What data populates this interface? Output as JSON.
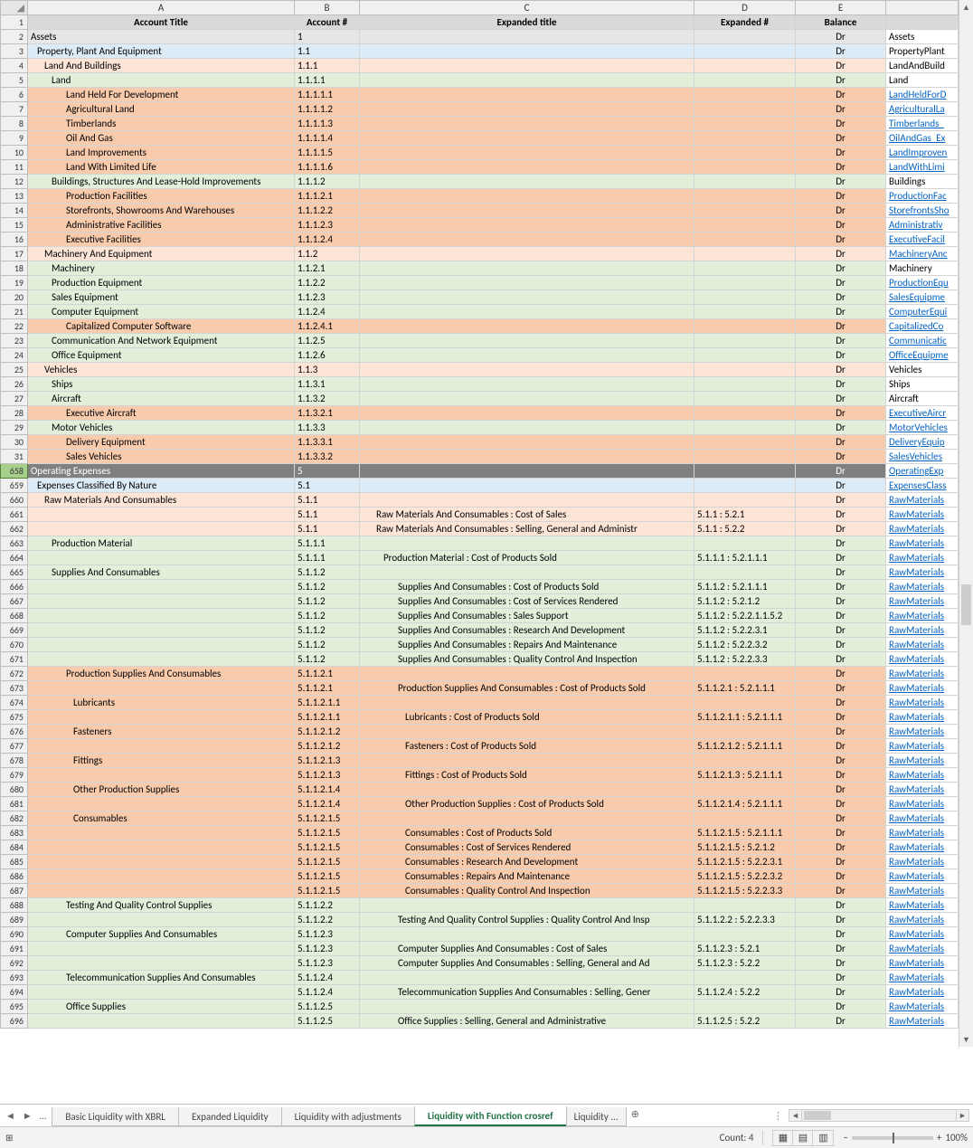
{
  "columns": {
    "labels": [
      "",
      "A",
      "B",
      "C",
      "D",
      "E",
      ""
    ],
    "widths": [
      30,
      295,
      72,
      370,
      112,
      100,
      80
    ],
    "headers": {
      "A": "Account Title",
      "B": "Account #",
      "C": "Expanded title",
      "D": "Expanded #",
      "E": "Balance"
    }
  },
  "row_colors": {
    "gray": "#d9d9d9",
    "lightgray": "#e7e6e6",
    "blue": "#ddebf7",
    "pink": "#fce4d6",
    "peach": "#f8cbad",
    "green": "#e2efda",
    "darkgray": "#808080",
    "white": "#ffffff",
    "sel": "#a8d08d"
  },
  "rows": [
    {
      "n": "1",
      "bg": "gray",
      "hdr": true
    },
    {
      "n": "2",
      "bg": "lightgray",
      "a": "Assets",
      "ai": 0,
      "b": "1",
      "e": "Dr",
      "f": "Assets"
    },
    {
      "n": "3",
      "bg": "blue",
      "a": "Property, Plant And Equipment",
      "ai": 1,
      "b": "1.1",
      "e": "Dr",
      "f": "PropertyPlant"
    },
    {
      "n": "4",
      "bg": "pink",
      "a": "Land And Buildings",
      "ai": 2,
      "b": "1.1.1",
      "e": "Dr",
      "f": "LandAndBuild"
    },
    {
      "n": "5",
      "bg": "green",
      "a": "Land",
      "ai": 3,
      "b": "1.1.1.1",
      "e": "Dr",
      "f": "Land"
    },
    {
      "n": "6",
      "bg": "peach",
      "a": "Land Held For Development",
      "ai": 4,
      "b": "1.1.1.1.1",
      "e": "Dr",
      "f": "LandHeldForD",
      "link": true
    },
    {
      "n": "7",
      "bg": "peach",
      "a": "Agricultural Land",
      "ai": 4,
      "b": "1.1.1.1.2",
      "e": "Dr",
      "f": "AgriculturalLa",
      "link": true
    },
    {
      "n": "8",
      "bg": "peach",
      "a": "Timberlands",
      "ai": 4,
      "b": "1.1.1.1.3",
      "e": "Dr",
      "f": "Timberlands_",
      "link": true
    },
    {
      "n": "9",
      "bg": "peach",
      "a": "Oil And Gas",
      "ai": 4,
      "b": "1.1.1.1.4",
      "e": "Dr",
      "f": "OilAndGas_Ex",
      "link": true
    },
    {
      "n": "10",
      "bg": "peach",
      "a": "Land Improvements",
      "ai": 4,
      "b": "1.1.1.1.5",
      "e": "Dr",
      "f": "LandImproven",
      "link": true
    },
    {
      "n": "11",
      "bg": "peach",
      "a": "Land With Limited Life",
      "ai": 4,
      "b": "1.1.1.1.6",
      "e": "Dr",
      "f": "LandWithLimi",
      "link": true
    },
    {
      "n": "12",
      "bg": "green",
      "a": "Buildings, Structures And Lease-Hold Improvements",
      "ai": 3,
      "b": "1.1.1.2",
      "e": "Dr",
      "f": "Buildings"
    },
    {
      "n": "13",
      "bg": "peach",
      "a": "Production Facilities",
      "ai": 4,
      "b": "1.1.1.2.1",
      "e": "Dr",
      "f": "ProductionFac",
      "link": true
    },
    {
      "n": "14",
      "bg": "peach",
      "a": "Storefronts, Showrooms And Warehouses",
      "ai": 4,
      "b": "1.1.1.2.2",
      "e": "Dr",
      "f": "StorefrontsSho",
      "link": true
    },
    {
      "n": "15",
      "bg": "peach",
      "a": "Administrative Facilities",
      "ai": 4,
      "b": "1.1.1.2.3",
      "e": "Dr",
      "f": "Administrativ",
      "link": true
    },
    {
      "n": "16",
      "bg": "peach",
      "a": "Executive Facilities",
      "ai": 4,
      "b": "1.1.1.2.4",
      "e": "Dr",
      "f": "ExecutiveFacil",
      "link": true
    },
    {
      "n": "17",
      "bg": "pink",
      "a": "Machinery And Equipment",
      "ai": 2,
      "b": "1.1.2",
      "e": "Dr",
      "f": "MachineryAnc",
      "link": true
    },
    {
      "n": "18",
      "bg": "green",
      "a": "Machinery",
      "ai": 3,
      "b": "1.1.2.1",
      "e": "Dr",
      "f": "Machinery"
    },
    {
      "n": "19",
      "bg": "green",
      "a": "Production Equipment",
      "ai": 3,
      "b": "1.1.2.2",
      "e": "Dr",
      "f": "ProductionEqu",
      "link": true
    },
    {
      "n": "20",
      "bg": "green",
      "a": "Sales Equipment",
      "ai": 3,
      "b": "1.1.2.3",
      "e": "Dr",
      "f": "SalesEquipme",
      "link": true
    },
    {
      "n": "21",
      "bg": "green",
      "a": "Computer Equipment",
      "ai": 3,
      "b": "1.1.2.4",
      "e": "Dr",
      "f": "ComputerEqui",
      "link": true
    },
    {
      "n": "22",
      "bg": "peach",
      "a": "Capitalized Computer Software",
      "ai": 4,
      "b": "1.1.2.4.1",
      "e": "Dr",
      "f": "CapitalizedCo",
      "link": true
    },
    {
      "n": "23",
      "bg": "green",
      "a": "Communication And Network Equipment",
      "ai": 3,
      "b": "1.1.2.5",
      "e": "Dr",
      "f": "Communicatic",
      "link": true
    },
    {
      "n": "24",
      "bg": "green",
      "a": "Office Equipment",
      "ai": 3,
      "b": "1.1.2.6",
      "e": "Dr",
      "f": "OfficeEquipme",
      "link": true
    },
    {
      "n": "25",
      "bg": "pink",
      "a": "Vehicles",
      "ai": 2,
      "b": "1.1.3",
      "e": "Dr",
      "f": "Vehicles"
    },
    {
      "n": "26",
      "bg": "green",
      "a": "Ships",
      "ai": 3,
      "b": "1.1.3.1",
      "e": "Dr",
      "f": "Ships"
    },
    {
      "n": "27",
      "bg": "green",
      "a": "Aircraft",
      "ai": 3,
      "b": "1.1.3.2",
      "e": "Dr",
      "f": "Aircraft"
    },
    {
      "n": "28",
      "bg": "peach",
      "a": "Executive Aircraft",
      "ai": 4,
      "b": "1.1.3.2.1",
      "e": "Dr",
      "f": "ExecutiveAircr",
      "link": true
    },
    {
      "n": "29",
      "bg": "green",
      "a": "Motor Vehicles",
      "ai": 3,
      "b": "1.1.3.3",
      "e": "Dr",
      "f": "MotorVehicles",
      "link": true
    },
    {
      "n": "30",
      "bg": "peach",
      "a": "Delivery Equipment",
      "ai": 4,
      "b": "1.1.3.3.1",
      "e": "Dr",
      "f": "DeliveryEquip",
      "link": true
    },
    {
      "n": "31",
      "bg": "peach",
      "a": "Sales Vehicles",
      "ai": 4,
      "b": "1.1.3.3.2",
      "e": "Dr",
      "f": "SalesVehicles",
      "link": true
    },
    {
      "n": "658",
      "bg": "darkgray",
      "sel": true,
      "a": "Operating Expenses",
      "ai": 0,
      "b": "5",
      "e": "Dr",
      "f": "OperatingExp",
      "txtcolor": "#fff",
      "link": true
    },
    {
      "n": "659",
      "bg": "blue",
      "a": "Expenses Classified By Nature",
      "ai": 1,
      "b": "5.1",
      "e": "Dr",
      "f": "ExpensesClass",
      "link": true
    },
    {
      "n": "660",
      "bg": "pink",
      "a": "Raw Materials And Consumables",
      "ai": 2,
      "b": "5.1.1",
      "e": "Dr",
      "f": "RawMaterials",
      "link": true
    },
    {
      "n": "661",
      "bg": "pink",
      "b": "5.1.1",
      "c": "Raw Materials And Consumables : Cost of Sales",
      "ci": 2,
      "d": "5.1.1 : 5.2.1",
      "e": "Dr",
      "f": "RawMaterials",
      "link": true
    },
    {
      "n": "662",
      "bg": "pink",
      "b": "5.1.1",
      "c": "Raw Materials And Consumables : Selling, General and Administr",
      "ci": 2,
      "d": "5.1.1 : 5.2.2",
      "e": "Dr",
      "f": "RawMaterials",
      "link": true
    },
    {
      "n": "663",
      "bg": "green",
      "a": "Production Material",
      "ai": 3,
      "b": "5.1.1.1",
      "e": "Dr",
      "f": "RawMaterials",
      "link": true
    },
    {
      "n": "664",
      "bg": "green",
      "b": "5.1.1.1",
      "c": "Production Material : Cost of Products Sold",
      "ci": 3,
      "d": "5.1.1.1 : 5.2.1.1.1",
      "e": "Dr",
      "f": "RawMaterials",
      "link": true
    },
    {
      "n": "665",
      "bg": "green",
      "a": "Supplies And Consumables",
      "ai": 3,
      "b": "5.1.1.2",
      "e": "Dr",
      "f": "RawMaterials",
      "link": true
    },
    {
      "n": "666",
      "bg": "green",
      "b": "5.1.1.2",
      "c": "Supplies And Consumables : Cost of Products Sold",
      "ci": 4,
      "d": "5.1.1.2 : 5.2.1.1.1",
      "e": "Dr",
      "f": "RawMaterials",
      "link": true
    },
    {
      "n": "667",
      "bg": "green",
      "b": "5.1.1.2",
      "c": "Supplies And Consumables : Cost of Services Rendered",
      "ci": 4,
      "d": "5.1.1.2 : 5.2.1.2",
      "e": "Dr",
      "f": "RawMaterials",
      "link": true
    },
    {
      "n": "668",
      "bg": "green",
      "b": "5.1.1.2",
      "c": "Supplies And Consumables : Sales Support",
      "ci": 4,
      "d": "5.1.1.2 : 5.2.2.1.1.5.2",
      "e": "Dr",
      "f": "RawMaterials",
      "link": true
    },
    {
      "n": "669",
      "bg": "green",
      "b": "5.1.1.2",
      "c": "Supplies And Consumables : Research And Development",
      "ci": 4,
      "d": "5.1.1.2 : 5.2.2.3.1",
      "e": "Dr",
      "f": "RawMaterials",
      "link": true
    },
    {
      "n": "670",
      "bg": "green",
      "b": "5.1.1.2",
      "c": "Supplies And Consumables : Repairs And Maintenance",
      "ci": 4,
      "d": "5.1.1.2 : 5.2.2.3.2",
      "e": "Dr",
      "f": "RawMaterials",
      "link": true
    },
    {
      "n": "671",
      "bg": "green",
      "b": "5.1.1.2",
      "c": "Supplies And Consumables : Quality Control And Inspection",
      "ci": 4,
      "d": "5.1.1.2 : 5.2.2.3.3",
      "e": "Dr",
      "f": "RawMaterials",
      "link": true
    },
    {
      "n": "672",
      "bg": "peach",
      "a": "Production Supplies And Consumables",
      "ai": 4,
      "b": "5.1.1.2.1",
      "e": "Dr",
      "f": "RawMaterials",
      "link": true
    },
    {
      "n": "673",
      "bg": "peach",
      "b": "5.1.1.2.1",
      "c": "Production Supplies And Consumables : Cost of Products Sold",
      "ci": 4,
      "d": "5.1.1.2.1 : 5.2.1.1.1",
      "e": "Dr",
      "f": "RawMaterials",
      "link": true
    },
    {
      "n": "674",
      "bg": "peach",
      "a": "Lubricants",
      "ai": 5,
      "b": "5.1.1.2.1.1",
      "e": "Dr",
      "f": "RawMaterials",
      "link": true
    },
    {
      "n": "675",
      "bg": "peach",
      "b": "5.1.1.2.1.1",
      "c": "Lubricants : Cost of Products Sold",
      "ci": 5,
      "d": "5.1.1.2.1.1 : 5.2.1.1.1",
      "e": "Dr",
      "f": "RawMaterials",
      "link": true
    },
    {
      "n": "676",
      "bg": "peach",
      "a": "Fasteners",
      "ai": 5,
      "b": "5.1.1.2.1.2",
      "e": "Dr",
      "f": "RawMaterials",
      "link": true
    },
    {
      "n": "677",
      "bg": "peach",
      "b": "5.1.1.2.1.2",
      "c": "Fasteners : Cost of Products Sold",
      "ci": 5,
      "d": "5.1.1.2.1.2 : 5.2.1.1.1",
      "e": "Dr",
      "f": "RawMaterials",
      "link": true
    },
    {
      "n": "678",
      "bg": "peach",
      "a": "Fittings",
      "ai": 5,
      "b": "5.1.1.2.1.3",
      "e": "Dr",
      "f": "RawMaterials",
      "link": true
    },
    {
      "n": "679",
      "bg": "peach",
      "b": "5.1.1.2.1.3",
      "c": "Fittings : Cost of Products Sold",
      "ci": 5,
      "d": "5.1.1.2.1.3 : 5.2.1.1.1",
      "e": "Dr",
      "f": "RawMaterials",
      "link": true
    },
    {
      "n": "680",
      "bg": "peach",
      "a": "Other Production Supplies",
      "ai": 5,
      "b": "5.1.1.2.1.4",
      "e": "Dr",
      "f": "RawMaterials",
      "link": true
    },
    {
      "n": "681",
      "bg": "peach",
      "b": "5.1.1.2.1.4",
      "c": "Other Production Supplies : Cost of Products Sold",
      "ci": 5,
      "d": "5.1.1.2.1.4 : 5.2.1.1.1",
      "e": "Dr",
      "f": "RawMaterials",
      "link": true
    },
    {
      "n": "682",
      "bg": "peach",
      "a": "Consumables",
      "ai": 5,
      "b": "5.1.1.2.1.5",
      "e": "Dr",
      "f": "RawMaterials",
      "link": true
    },
    {
      "n": "683",
      "bg": "peach",
      "b": "5.1.1.2.1.5",
      "c": "Consumables : Cost of Products Sold",
      "ci": 5,
      "d": "5.1.1.2.1.5 : 5.2.1.1.1",
      "e": "Dr",
      "f": "RawMaterials",
      "link": true
    },
    {
      "n": "684",
      "bg": "peach",
      "b": "5.1.1.2.1.5",
      "c": "Consumables : Cost of Services Rendered",
      "ci": 5,
      "d": "5.1.1.2.1.5 : 5.2.1.2",
      "e": "Dr",
      "f": "RawMaterials",
      "link": true
    },
    {
      "n": "685",
      "bg": "peach",
      "b": "5.1.1.2.1.5",
      "c": "Consumables : Research And Development",
      "ci": 5,
      "d": "5.1.1.2.1.5 : 5.2.2.3.1",
      "e": "Dr",
      "f": "RawMaterials",
      "link": true
    },
    {
      "n": "686",
      "bg": "peach",
      "b": "5.1.1.2.1.5",
      "c": "Consumables : Repairs And Maintenance",
      "ci": 5,
      "d": "5.1.1.2.1.5 : 5.2.2.3.2",
      "e": "Dr",
      "f": "RawMaterials",
      "link": true
    },
    {
      "n": "687",
      "bg": "peach",
      "b": "5.1.1.2.1.5",
      "c": "Consumables : Quality Control And Inspection",
      "ci": 5,
      "d": "5.1.1.2.1.5 : 5.2.2.3.3",
      "e": "Dr",
      "f": "RawMaterials",
      "link": true
    },
    {
      "n": "688",
      "bg": "green",
      "a": "Testing And Quality Control Supplies",
      "ai": 4,
      "b": "5.1.1.2.2",
      "e": "Dr",
      "f": "RawMaterials",
      "link": true
    },
    {
      "n": "689",
      "bg": "green",
      "b": "5.1.1.2.2",
      "c": "Testing And Quality Control Supplies : Quality Control And Insp",
      "ci": 4,
      "d": "5.1.1.2.2 : 5.2.2.3.3",
      "e": "Dr",
      "f": "RawMaterials",
      "link": true
    },
    {
      "n": "690",
      "bg": "green",
      "a": "Computer Supplies And Consumables",
      "ai": 4,
      "b": "5.1.1.2.3",
      "e": "Dr",
      "f": "RawMaterials",
      "link": true
    },
    {
      "n": "691",
      "bg": "green",
      "b": "5.1.1.2.3",
      "c": "Computer Supplies And Consumables : Cost of Sales",
      "ci": 4,
      "d": "5.1.1.2.3 : 5.2.1",
      "e": "Dr",
      "f": "RawMaterials",
      "link": true
    },
    {
      "n": "692",
      "bg": "green",
      "b": "5.1.1.2.3",
      "c": "Computer Supplies And Consumables : Selling, General and Ad",
      "ci": 4,
      "d": "5.1.1.2.3 : 5.2.2",
      "e": "Dr",
      "f": "RawMaterials",
      "link": true
    },
    {
      "n": "693",
      "bg": "green",
      "a": "Telecommunication Supplies And Consumables",
      "ai": 4,
      "b": "5.1.1.2.4",
      "e": "Dr",
      "f": "RawMaterials",
      "link": true
    },
    {
      "n": "694",
      "bg": "green",
      "b": "5.1.1.2.4",
      "c": "Telecommunication Supplies And Consumables : Selling, Gener",
      "ci": 4,
      "d": "5.1.1.2.4 : 5.2.2",
      "e": "Dr",
      "f": "RawMaterials",
      "link": true
    },
    {
      "n": "695",
      "bg": "green",
      "a": "Office Supplies",
      "ai": 4,
      "b": "5.1.1.2.5",
      "e": "Dr",
      "f": "RawMaterials",
      "link": true
    },
    {
      "n": "696",
      "bg": "green",
      "b": "5.1.1.2.5",
      "c": "Office Supplies : Selling, General and Administrative",
      "ci": 4,
      "d": "5.1.1.2.5 : 5.2.2",
      "e": "Dr",
      "f": "RawMaterials",
      "link": true
    }
  ],
  "tabs": {
    "list": [
      "Basic Liquidity with XBRL",
      "Expanded Liquidity",
      "Liquidity with adjustments",
      "Liquidity with Function crosref",
      "Liquidity  ..."
    ],
    "active_index": 3
  },
  "status": {
    "ready_icon": "⊞",
    "count_label": "Count: 4",
    "zoom": "100%"
  },
  "scrollbar": {
    "thumb_top_pct": 56,
    "thumb_height_pct": 4
  }
}
